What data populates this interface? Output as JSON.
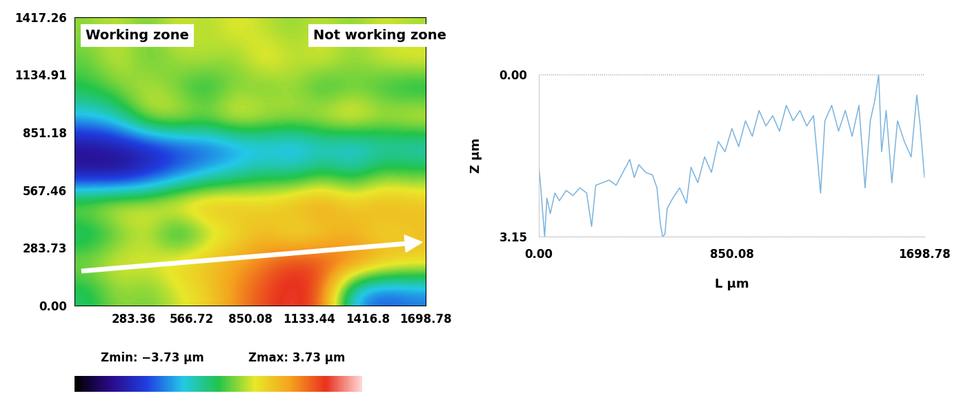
{
  "chart_data": [
    {
      "type": "heatmap",
      "annotations": [
        "Working zone",
        "Not working zone"
      ],
      "colorbar_labels": [
        "Zmin: −3.73 µm",
        "Zmax: 3.73 µm"
      ],
      "colorbar_range": [
        -3.73,
        3.73
      ],
      "xlim": [
        0,
        1698.78
      ],
      "ylim": [
        0,
        1417.26
      ],
      "xticks": [
        283.36,
        566.72,
        850.08,
        1133.44,
        1416.8,
        1698.78
      ],
      "yticks": [
        {
          "value": 0,
          "label": "0.00"
        },
        283.73,
        567.46,
        851.18,
        1134.91,
        1417.26
      ],
      "cells": [
        [
          0.5,
          0.8,
          0.3,
          0.9,
          0.6,
          1.0,
          0.7,
          0.5,
          0.8,
          0.4,
          0.9,
          0.6
        ],
        [
          0.3,
          0.9,
          0.2,
          0.6,
          0.8,
          0.4,
          1.2,
          0.7,
          1.0,
          0.5,
          0.8,
          1.1
        ],
        [
          0.0,
          0.4,
          0.8,
          0.3,
          -0.3,
          0.5,
          0.2,
          0.6,
          -0.2,
          0.3,
          0.0,
          -0.4
        ],
        [
          -1.0,
          -0.6,
          0.8,
          1.0,
          0.6,
          1.2,
          0.9,
          0.7,
          1.0,
          1.4,
          0.8,
          1.2
        ],
        [
          -2.8,
          -2.6,
          -2.4,
          -2.0,
          -1.8,
          -1.5,
          -1.2,
          -1.4,
          -1.0,
          -1.3,
          -0.8,
          -1.0
        ],
        [
          -2.6,
          -2.8,
          -2.2,
          -1.6,
          -1.0,
          -0.6,
          -0.2,
          -0.4,
          0.2,
          -0.3,
          0.4,
          0.3
        ],
        [
          0.8,
          1.2,
          1.0,
          1.5,
          1.8,
          1.6,
          1.3,
          1.8,
          2.0,
          1.4,
          1.8,
          1.5
        ],
        [
          -0.5,
          0.2,
          0.8,
          -0.6,
          0.4,
          1.0,
          1.5,
          0.8,
          1.2,
          1.6,
          1.0,
          1.4
        ],
        [
          0.6,
          1.0,
          0.9,
          1.3,
          1.5,
          1.8,
          2.2,
          2.8,
          2.6,
          2.4,
          1.8,
          1.4
        ],
        [
          -0.2,
          0.6,
          0.3,
          0.8,
          1.2,
          2.0,
          2.6,
          3.0,
          2.4,
          -1.2,
          -1.8,
          -1.5
        ]
      ]
    },
    {
      "type": "line",
      "x_label": "L µm",
      "y_label": "Z µm",
      "color": "#7ab3dd",
      "grid": true,
      "xlim": [
        0,
        1698.78
      ],
      "ylim": [
        3.15,
        0
      ],
      "xticks": [
        {
          "value": 0,
          "label": "0.00"
        },
        850.08,
        1698.78
      ],
      "yticks": [
        {
          "value": 0,
          "label": "0.00"
        },
        3.15
      ],
      "x": [
        0,
        8,
        15,
        25,
        35,
        50,
        70,
        90,
        120,
        150,
        180,
        210,
        232,
        250,
        280,
        310,
        340,
        370,
        400,
        420,
        440,
        470,
        500,
        520,
        535,
        545,
        555,
        565,
        590,
        620,
        650,
        670,
        700,
        730,
        760,
        790,
        820,
        850,
        880,
        910,
        940,
        970,
        1000,
        1030,
        1060,
        1090,
        1120,
        1150,
        1180,
        1210,
        1241,
        1260,
        1290,
        1320,
        1350,
        1380,
        1410,
        1437,
        1460,
        1480,
        1497,
        1510,
        1530,
        1555,
        1580,
        1610,
        1640,
        1665,
        1680,
        1698.78
      ],
      "values": [
        1.8,
        2.2,
        2.6,
        3.15,
        2.4,
        2.7,
        2.3,
        2.45,
        2.25,
        2.35,
        2.2,
        2.3,
        2.95,
        2.15,
        2.1,
        2.05,
        2.15,
        1.9,
        1.65,
        2.0,
        1.75,
        1.9,
        1.95,
        2.2,
        2.9,
        3.15,
        3.1,
        2.6,
        2.4,
        2.2,
        2.5,
        1.8,
        2.1,
        1.6,
        1.9,
        1.3,
        1.5,
        1.05,
        1.4,
        0.9,
        1.2,
        0.7,
        1.0,
        0.8,
        1.1,
        0.6,
        0.9,
        0.7,
        1.0,
        0.8,
        2.3,
        0.9,
        0.6,
        1.1,
        0.7,
        1.2,
        0.6,
        2.2,
        0.9,
        0.5,
        0.0,
        1.5,
        0.7,
        2.1,
        0.9,
        1.3,
        1.6,
        0.4,
        1.0,
        2.0
      ]
    }
  ]
}
